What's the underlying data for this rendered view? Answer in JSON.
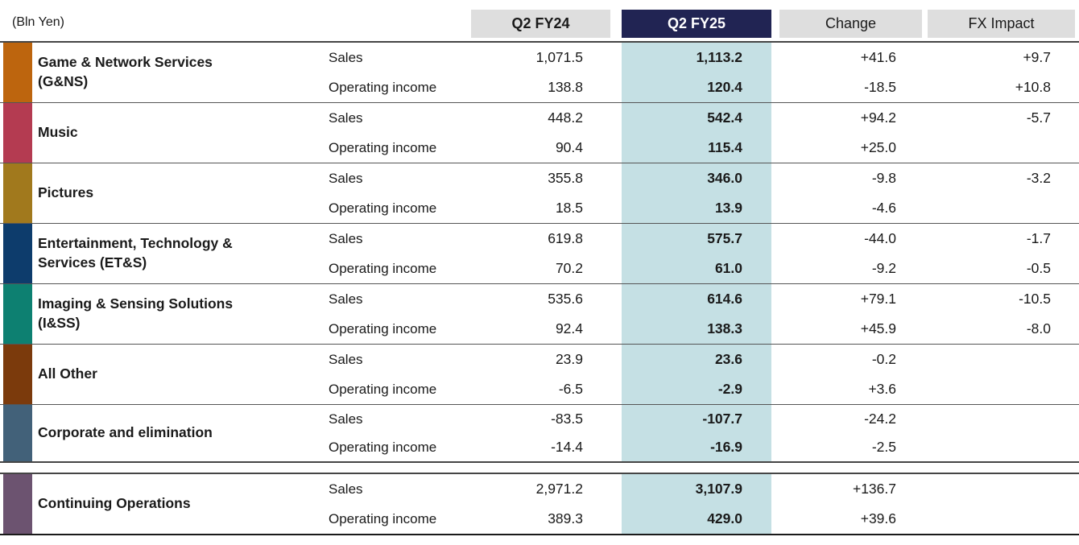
{
  "unit_label": "(Bln Yen)",
  "columns": {
    "fy24": "Q2 FY24",
    "fy25": "Q2 FY25",
    "change": "Change",
    "fx": "FX Impact"
  },
  "colors": {
    "header_cell_bg": "#dedede",
    "header_highlight_bg": "#212453",
    "header_highlight_text": "#ffffff",
    "fy25_column_bg": "#c5e0e4"
  },
  "table": {
    "sections": [
      {
        "name": "Game & Network Services\n(G&NS)",
        "color": "#bd650e",
        "rows": [
          {
            "metric": "Sales",
            "fy24": "1,071.5",
            "fy25": "1,113.2",
            "change": "+41.6",
            "fx": "+9.7"
          },
          {
            "metric": "Operating income",
            "fy24": "138.8",
            "fy25": "120.4",
            "change": "-18.5",
            "fx": "+10.8"
          }
        ]
      },
      {
        "name": "Music",
        "color": "#b43b51",
        "rows": [
          {
            "metric": "Sales",
            "fy24": "448.2",
            "fy25": "542.4",
            "change": "+94.2",
            "fx": "-5.7"
          },
          {
            "metric": "Operating income",
            "fy24": "90.4",
            "fy25": "115.4",
            "change": "+25.0",
            "fx": ""
          }
        ]
      },
      {
        "name": "Pictures",
        "color": "#a1791d",
        "rows": [
          {
            "metric": "Sales",
            "fy24": "355.8",
            "fy25": "346.0",
            "change": "-9.8",
            "fx": "-3.2"
          },
          {
            "metric": "Operating income",
            "fy24": "18.5",
            "fy25": "13.9",
            "change": "-4.6",
            "fx": ""
          }
        ]
      },
      {
        "name": "Entertainment, Technology &\nServices (ET&S)",
        "color": "#0d3c6c",
        "rows": [
          {
            "metric": "Sales",
            "fy24": "619.8",
            "fy25": "575.7",
            "change": "-44.0",
            "fx": "-1.7"
          },
          {
            "metric": "Operating income",
            "fy24": "70.2",
            "fy25": "61.0",
            "change": "-9.2",
            "fx": "-0.5"
          }
        ]
      },
      {
        "name": "Imaging & Sensing Solutions\n(I&SS)",
        "color": "#0d8071",
        "rows": [
          {
            "metric": "Sales",
            "fy24": "535.6",
            "fy25": "614.6",
            "change": "+79.1",
            "fx": "-10.5"
          },
          {
            "metric": "Operating income",
            "fy24": "92.4",
            "fy25": "138.3",
            "change": "+45.9",
            "fx": "-8.0"
          }
        ]
      },
      {
        "name": "All Other",
        "color": "#7b3a0c",
        "rows": [
          {
            "metric": "Sales",
            "fy24": "23.9",
            "fy25": "23.6",
            "change": "-0.2",
            "fx": ""
          },
          {
            "metric": "Operating income",
            "fy24": "-6.5",
            "fy25": "-2.9",
            "change": "+3.6",
            "fx": ""
          }
        ]
      },
      {
        "name": "Corporate and elimination",
        "color": "#426179",
        "rows": [
          {
            "metric": "Sales",
            "fy24": "-83.5",
            "fy25": "-107.7",
            "change": "-24.2",
            "fx": ""
          },
          {
            "metric": "Operating income",
            "fy24": "-14.4",
            "fy25": "-16.9",
            "change": "-2.5",
            "fx": ""
          }
        ]
      },
      {
        "name": "Continuing Operations",
        "color": "#6c5370",
        "rows": [
          {
            "metric": "Sales",
            "fy24": "2,971.2",
            "fy25": "3,107.9",
            "change": "+136.7",
            "fx": ""
          },
          {
            "metric": "Operating income",
            "fy24": "389.3",
            "fy25": "429.0",
            "change": "+39.6",
            "fx": ""
          }
        ]
      }
    ]
  }
}
